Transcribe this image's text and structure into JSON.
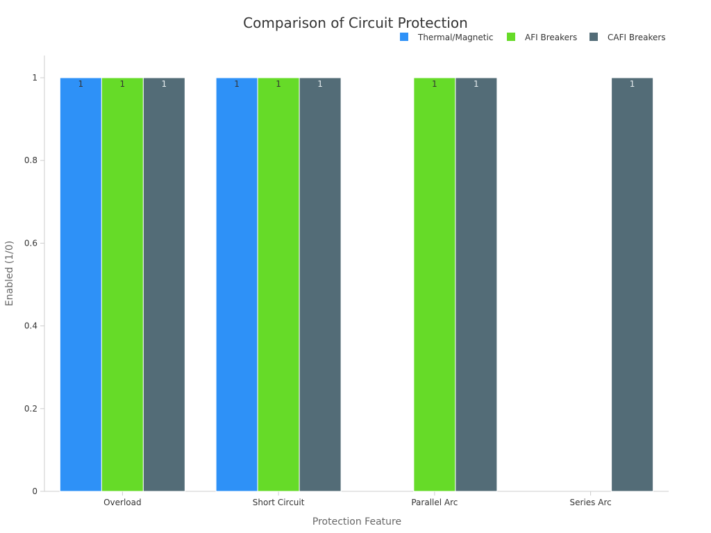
{
  "chart_data": {
    "type": "bar",
    "title": "Comparison of Circuit Protection",
    "xlabel": "Protection Feature",
    "ylabel": "Enabled (1/0)",
    "categories": [
      "Overload",
      "Short Circuit",
      "Parallel Arc",
      "Series Arc"
    ],
    "series": [
      {
        "name": "Thermal/Magnetic",
        "color": "#2e91f7",
        "values": [
          1,
          1,
          0,
          0
        ]
      },
      {
        "name": "AFI Breakers",
        "color": "#66db28",
        "values": [
          1,
          1,
          1,
          0
        ]
      },
      {
        "name": "CAFI Breakers",
        "color": "#536c77",
        "values": [
          1,
          1,
          1,
          1
        ]
      }
    ],
    "ylim": [
      0,
      1.05
    ],
    "yticks": [
      "0",
      "0.2",
      "0.4",
      "0.6",
      "0.8",
      "1"
    ],
    "legend_position": "top-right",
    "grid": false
  }
}
